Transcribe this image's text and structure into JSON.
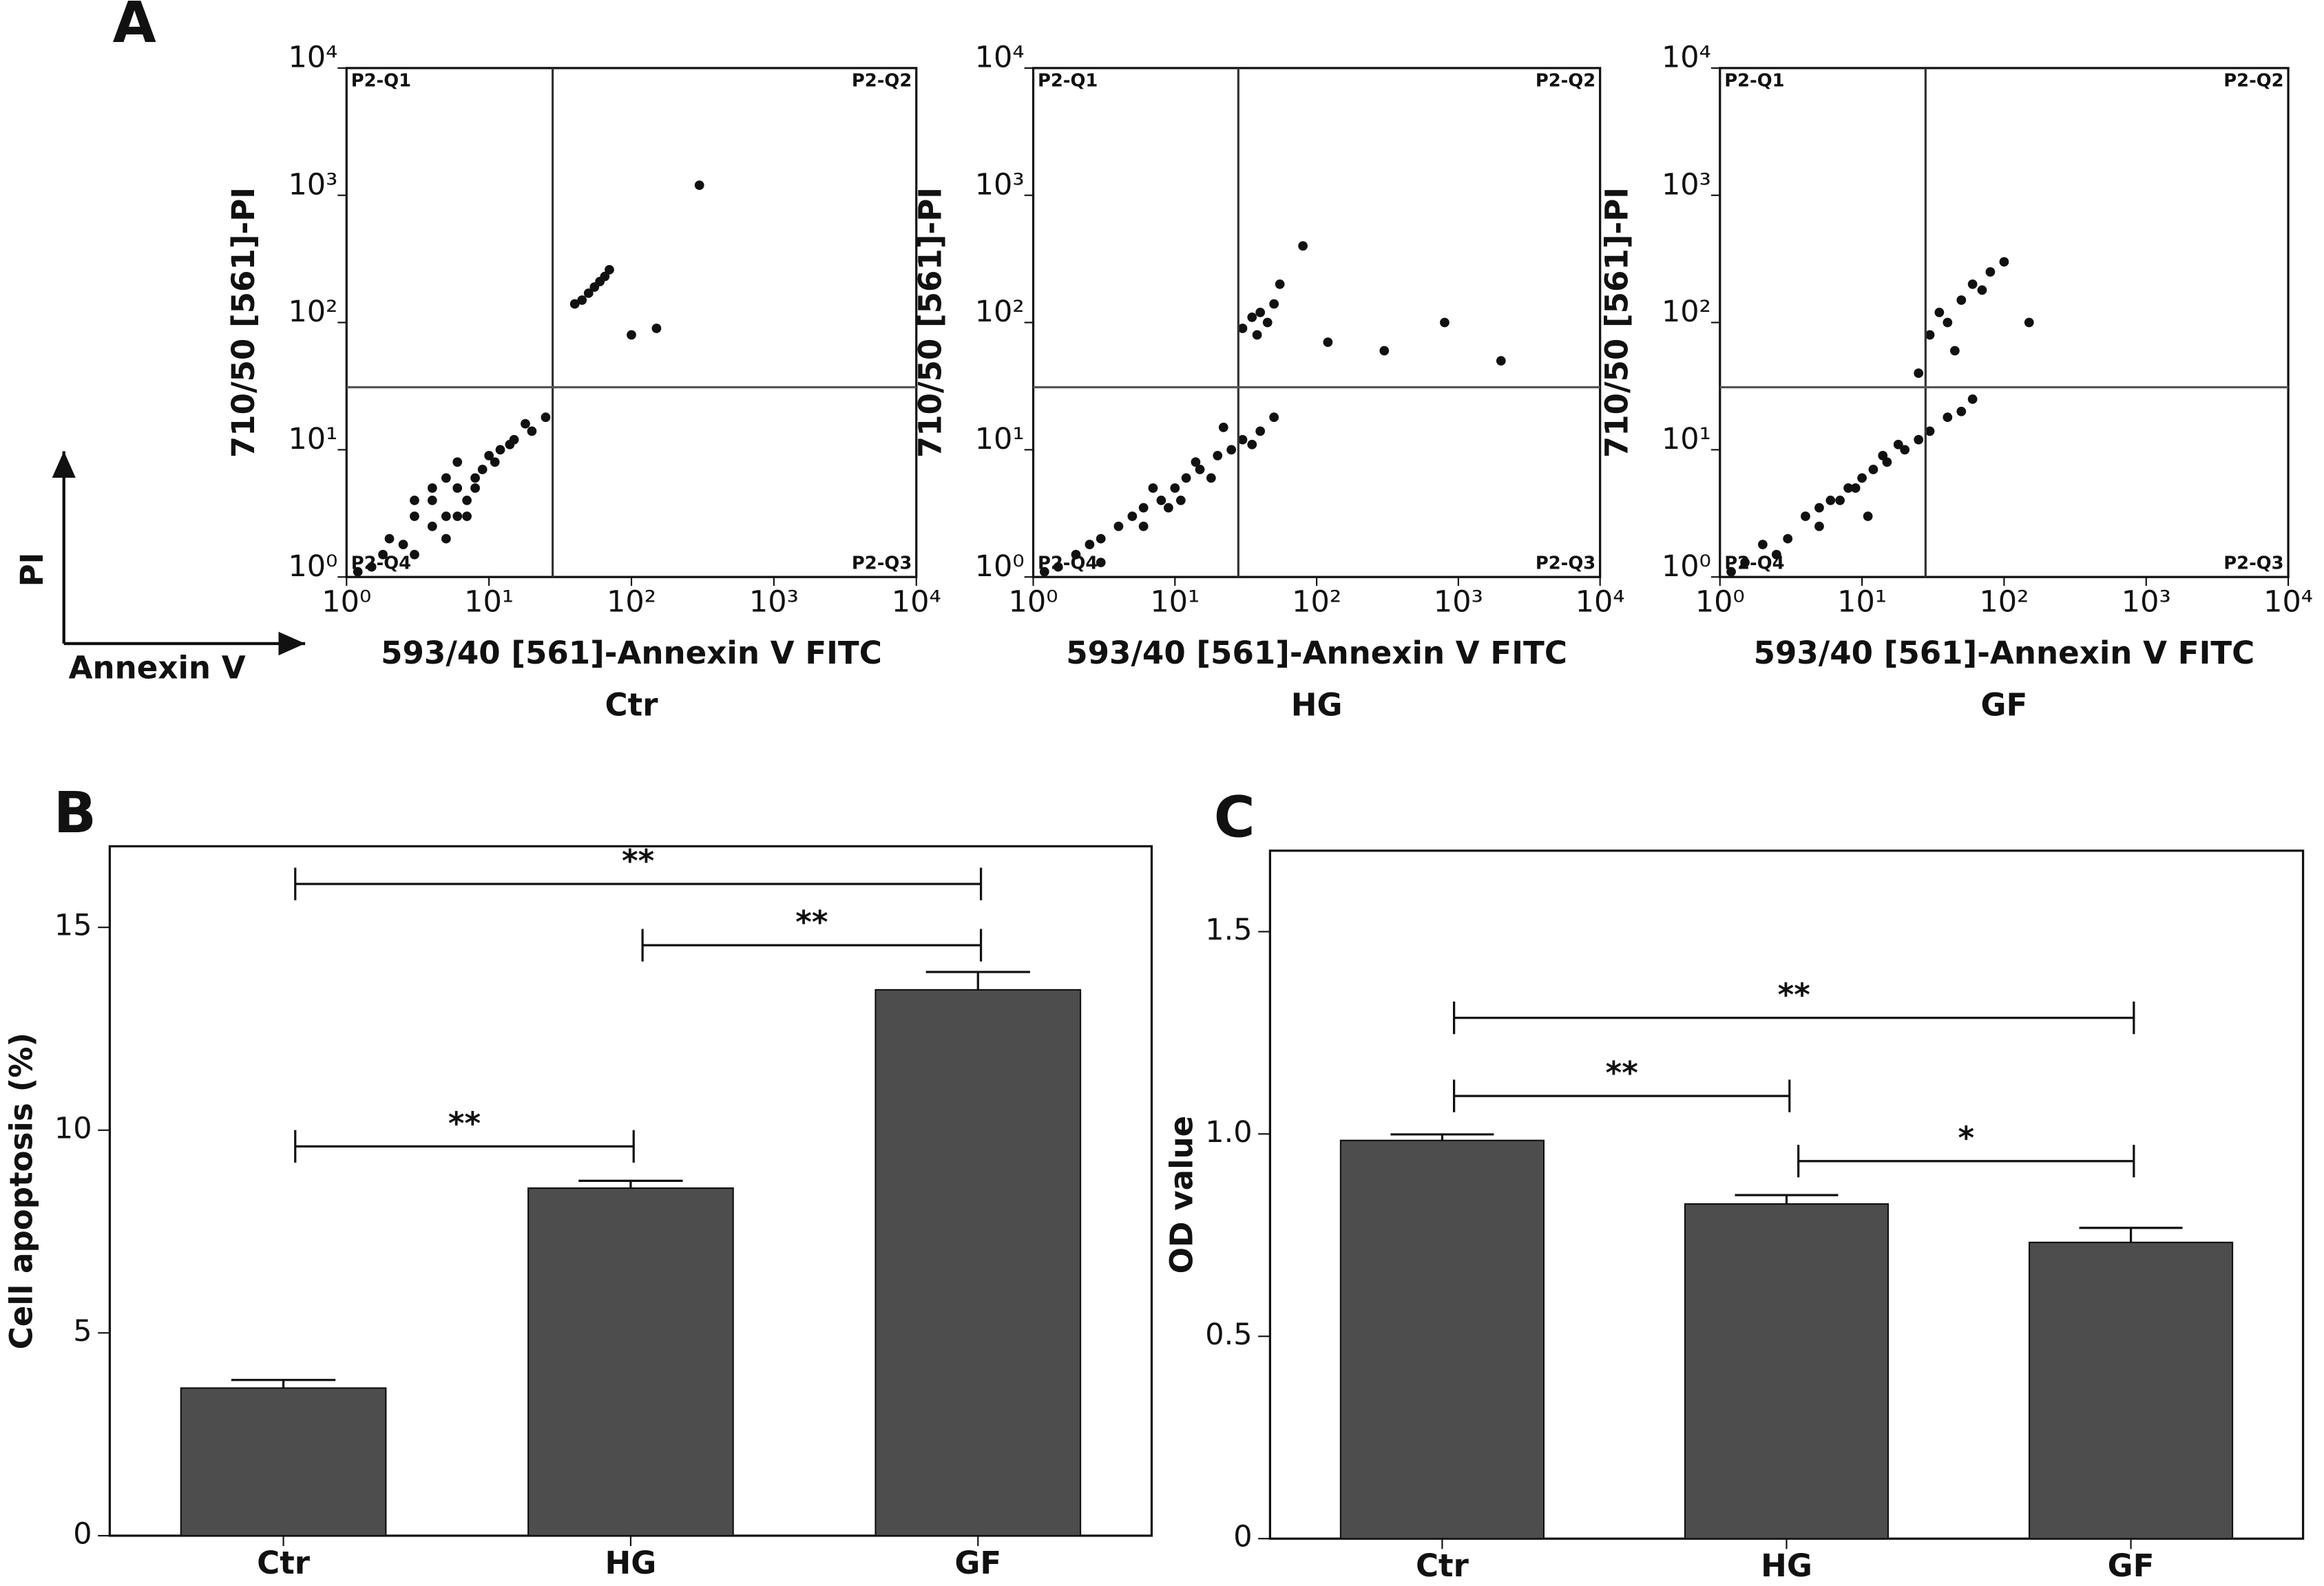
{
  "axis_key": {
    "y": "PI",
    "x": "Annexin V"
  },
  "chart_data": [
    {
      "type": "scatter",
      "panel": "A",
      "subtitle": "Ctr",
      "x_label": "593/40 [561]-Annexin V FITC",
      "y_label": "710/50 [561]-PI",
      "log_x": true,
      "log_y": true,
      "color": "#111111",
      "xlim": [
        1,
        10000
      ],
      "ylim": [
        1,
        10000
      ],
      "xticks": [
        {
          "value": 1,
          "label": "10⁰"
        },
        {
          "value": 10,
          "label": "10¹"
        },
        {
          "value": 100,
          "label": "10²"
        },
        {
          "value": 1000,
          "label": "10³"
        },
        {
          "value": 10000,
          "label": "10⁴"
        }
      ],
      "yticks": [
        {
          "value": 1,
          "label": "10⁰"
        },
        {
          "value": 10,
          "label": "10¹"
        },
        {
          "value": 100,
          "label": "10²"
        },
        {
          "value": 1000,
          "label": "10³"
        },
        {
          "value": 10000,
          "label": "10⁴"
        }
      ],
      "gates": {
        "x": 28,
        "y": 31
      },
      "quadrants": [
        "P2-Q1",
        "P2-Q2",
        "P2-Q3",
        "P2-Q4"
      ],
      "x": [
        2,
        3,
        4,
        5,
        6,
        7,
        8,
        3,
        4,
        5,
        6,
        9,
        10,
        12,
        15,
        20,
        25,
        1.5,
        2.5,
        4,
        6,
        8,
        11,
        14,
        18,
        3,
        5,
        7,
        45,
        50,
        55,
        60,
        70,
        40,
        65,
        100,
        150,
        300,
        1.2,
        1.8
      ],
      "values": [
        2,
        3,
        4,
        3,
        5,
        4,
        6,
        1.5,
        2.5,
        6,
        8,
        7,
        9,
        10,
        12,
        14,
        18,
        1.2,
        1.8,
        5,
        3,
        5,
        8,
        11,
        16,
        4,
        2,
        3,
        150,
        170,
        190,
        210,
        260,
        140,
        230,
        80,
        90,
        1200,
        1.1,
        1.5
      ]
    },
    {
      "type": "scatter",
      "panel": "",
      "subtitle": "HG",
      "x_label": "593/40 [561]-Annexin V FITC",
      "y_label": "710/50 [561]-PI",
      "log_x": true,
      "log_y": true,
      "color": "#111111",
      "xlim": [
        1,
        10000
      ],
      "ylim": [
        1,
        10000
      ],
      "xticks": [
        {
          "value": 1,
          "label": "10⁰"
        },
        {
          "value": 10,
          "label": "10¹"
        },
        {
          "value": 100,
          "label": "10²"
        },
        {
          "value": 1000,
          "label": "10³"
        },
        {
          "value": 10000,
          "label": "10⁴"
        }
      ],
      "yticks": [
        {
          "value": 1,
          "label": "10⁰"
        },
        {
          "value": 10,
          "label": "10¹"
        },
        {
          "value": 100,
          "label": "10²"
        },
        {
          "value": 1000,
          "label": "10³"
        },
        {
          "value": 10000,
          "label": "10⁴"
        }
      ],
      "gates": {
        "x": 28,
        "y": 31
      },
      "quadrants": [
        "P2-Q1",
        "P2-Q2",
        "P2-Q3",
        "P2-Q4"
      ],
      "x": [
        3,
        4,
        5,
        6,
        8,
        10,
        12,
        15,
        20,
        25,
        30,
        40,
        50,
        1.5,
        2,
        2.5,
        7,
        9,
        14,
        18,
        22,
        35,
        6,
        11,
        30,
        35,
        40,
        45,
        50,
        38,
        55,
        80,
        120,
        300,
        800,
        2000,
        1.2,
        3
      ],
      "values": [
        2,
        2.5,
        3,
        3.5,
        4,
        5,
        6,
        7,
        9,
        10,
        12,
        14,
        18,
        1.2,
        1.5,
        1.8,
        5,
        3.5,
        8,
        6,
        15,
        11,
        2.5,
        4,
        90,
        110,
        120,
        100,
        140,
        80,
        200,
        400,
        70,
        60,
        100,
        50,
        1.1,
        1.3
      ]
    },
    {
      "type": "scatter",
      "panel": "",
      "subtitle": "GF",
      "x_label": "593/40 [561]-Annexin V FITC",
      "y_label": "710/50 [561]-PI",
      "log_x": true,
      "log_y": true,
      "color": "#111111",
      "xlim": [
        1,
        10000
      ],
      "ylim": [
        1,
        10000
      ],
      "xticks": [
        {
          "value": 1,
          "label": "10⁰"
        },
        {
          "value": 10,
          "label": "10¹"
        },
        {
          "value": 100,
          "label": "10²"
        },
        {
          "value": 1000,
          "label": "10³"
        },
        {
          "value": 10000,
          "label": "10⁴"
        }
      ],
      "yticks": [
        {
          "value": 1,
          "label": "10⁰"
        },
        {
          "value": 10,
          "label": "10¹"
        },
        {
          "value": 100,
          "label": "10²"
        },
        {
          "value": 1000,
          "label": "10³"
        },
        {
          "value": 10000,
          "label": "10⁴"
        }
      ],
      "gates": {
        "x": 28,
        "y": 31
      },
      "quadrants": [
        "P2-Q1",
        "P2-Q2",
        "P2-Q3",
        "P2-Q4"
      ],
      "x": [
        3,
        4,
        5,
        6,
        8,
        10,
        12,
        15,
        20,
        25,
        30,
        40,
        50,
        60,
        1.5,
        2,
        7,
        9,
        14,
        18,
        5,
        11,
        30,
        35,
        40,
        50,
        60,
        70,
        80,
        100,
        45,
        25,
        150,
        1.2,
        2.5
      ],
      "values": [
        2,
        3,
        3.5,
        4,
        5,
        6,
        7,
        8,
        10,
        12,
        14,
        18,
        20,
        25,
        1.3,
        1.8,
        4,
        5,
        9,
        11,
        2.5,
        3,
        80,
        120,
        100,
        150,
        200,
        180,
        250,
        300,
        60,
        40,
        100,
        1.1,
        1.5
      ]
    },
    {
      "type": "bar",
      "panel": "B",
      "y_label": "Cell apoptosis (%)",
      "color": "#4d4d4d",
      "categories": [
        "Ctr",
        "HG",
        "GF"
      ],
      "values": [
        3.64,
        8.57,
        13.46
      ],
      "errors": [
        0.2,
        0.18,
        0.44
      ],
      "ylim": [
        0,
        17
      ],
      "yticks": [
        0,
        5,
        10,
        15
      ],
      "significance": [
        {
          "from": 0,
          "to": 2,
          "y": 16.07,
          "label": "**"
        },
        {
          "from": 1,
          "to": 2,
          "y": 14.56,
          "label": "**"
        },
        {
          "from": 0,
          "to": 1,
          "y": 9.6,
          "label": "**"
        }
      ]
    },
    {
      "type": "bar",
      "panel": "C",
      "y_label": "OD value",
      "color": "#4d4d4d",
      "categories": [
        "Ctr",
        "HG",
        "GF"
      ],
      "values": [
        0.984,
        0.827,
        0.732
      ],
      "errors": [
        0.015,
        0.022,
        0.036
      ],
      "ylim": [
        0,
        1.7
      ],
      "yticks": [
        0,
        0.5,
        {
          "value": 1,
          "label": "1.0"
        },
        1.5
      ],
      "significance": [
        {
          "from": 0,
          "to": 2,
          "y": 1.287,
          "label": "**"
        },
        {
          "from": 0,
          "to": 1,
          "y": 1.094,
          "label": "**"
        },
        {
          "from": 1,
          "to": 2,
          "y": 0.933,
          "label": "*"
        }
      ]
    }
  ]
}
